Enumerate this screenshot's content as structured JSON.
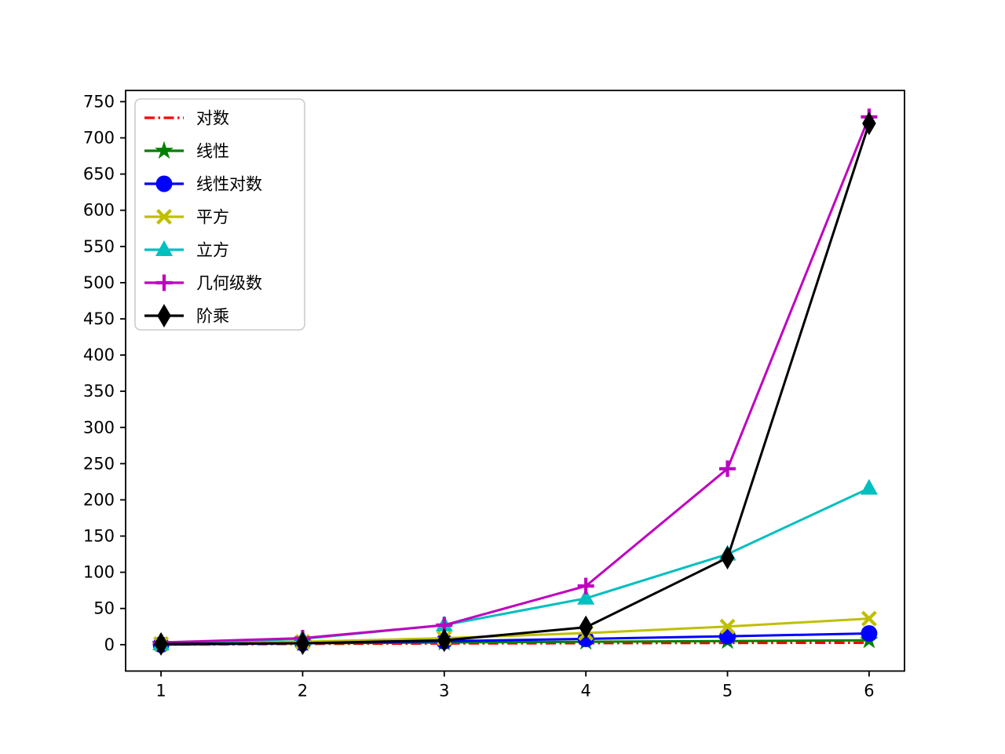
{
  "figure": {
    "background": "#ffffff",
    "spine_color": "#000000",
    "tick_color": "#000000",
    "legend_border_color": "#cccccc",
    "legend_background": "#ffffff"
  },
  "chart_data": {
    "type": "line",
    "title": "",
    "xlabel": "",
    "ylabel": "",
    "grid": false,
    "legend_position": "upper-left",
    "x": [
      1,
      2,
      3,
      4,
      5,
      6
    ],
    "xticks": [
      "1",
      "2",
      "3",
      "4",
      "5",
      "6"
    ],
    "yticks": [
      "0",
      "50",
      "100",
      "150",
      "200",
      "250",
      "300",
      "350",
      "400",
      "450",
      "500",
      "550",
      "600",
      "650",
      "700",
      "750"
    ],
    "ytick_values": [
      0,
      50,
      100,
      150,
      200,
      250,
      300,
      350,
      400,
      450,
      500,
      550,
      600,
      650,
      700,
      750
    ],
    "xtick_values": [
      1,
      2,
      3,
      4,
      5,
      6
    ],
    "xlim": [
      0.75,
      6.25
    ],
    "ylim": [
      -36.45,
      765.45
    ],
    "series": [
      {
        "name": "对数",
        "values": [
          0,
          1,
          1.58,
          2,
          2.32,
          2.58
        ],
        "color": "#ff0000",
        "linestyle": "dashdot",
        "marker": "none"
      },
      {
        "name": "线性",
        "values": [
          1,
          2,
          3,
          4,
          5,
          6
        ],
        "color": "#008000",
        "linestyle": "solid",
        "marker": "star"
      },
      {
        "name": "线性对数",
        "values": [
          0,
          2,
          4.75,
          8,
          11.61,
          15.51
        ],
        "color": "#0000ff",
        "linestyle": "solid",
        "marker": "circle"
      },
      {
        "name": "平方",
        "values": [
          1,
          4,
          9,
          16,
          25,
          36
        ],
        "color": "#bfbf00",
        "linestyle": "solid",
        "marker": "x"
      },
      {
        "name": "立方",
        "values": [
          1,
          8,
          27,
          64,
          125,
          216
        ],
        "color": "#00bfbf",
        "linestyle": "solid",
        "marker": "triangle-up"
      },
      {
        "name": "几何级数",
        "values": [
          3,
          9,
          27,
          81,
          243,
          729
        ],
        "color": "#bf00bf",
        "linestyle": "solid",
        "marker": "plus"
      },
      {
        "name": "阶乘",
        "values": [
          1,
          2,
          6,
          24,
          120,
          720
        ],
        "color": "#000000",
        "linestyle": "solid",
        "marker": "thin-diamond"
      }
    ]
  }
}
